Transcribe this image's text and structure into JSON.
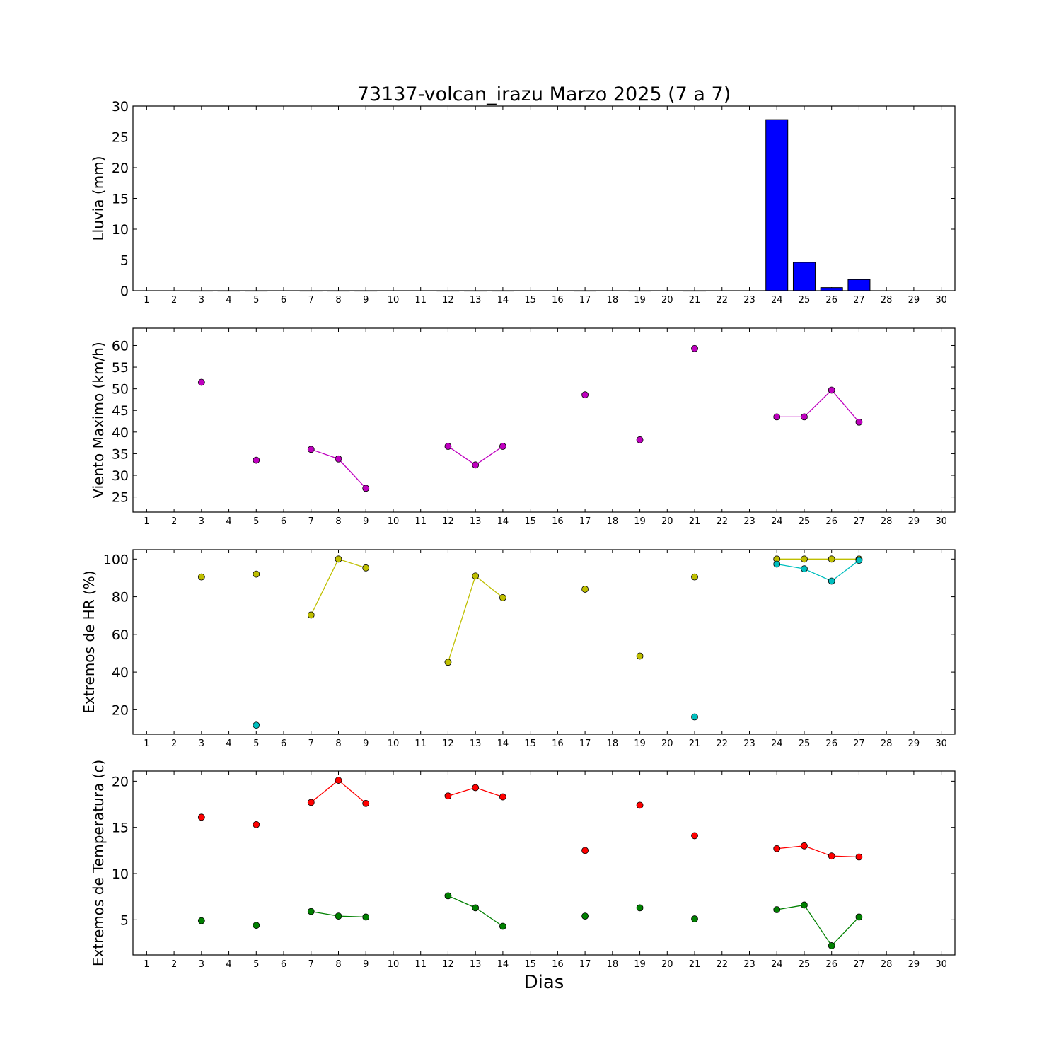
{
  "figure": {
    "title": "73137-volcan_irazu Marzo 2025  (7 a 7)",
    "xlabel": "Dias"
  },
  "chart_data": [
    {
      "type": "bar",
      "ylabel": "Lluvia (mm)",
      "xlim": [
        0.5,
        30.5
      ],
      "ylim": [
        0,
        30
      ],
      "yticks": [
        0,
        5,
        10,
        15,
        20,
        25,
        30
      ],
      "categories": [
        1,
        2,
        3,
        4,
        5,
        6,
        7,
        8,
        9,
        10,
        11,
        12,
        13,
        14,
        15,
        16,
        17,
        18,
        19,
        20,
        21,
        22,
        23,
        24,
        25,
        26,
        27,
        28,
        29,
        30
      ],
      "values": [
        null,
        null,
        0,
        0,
        0,
        null,
        0,
        0,
        0,
        null,
        null,
        0,
        0,
        0,
        null,
        null,
        0,
        null,
        0,
        null,
        0,
        null,
        null,
        27.8,
        4.6,
        0.5,
        1.8,
        null,
        null,
        null
      ],
      "color": "#0000ff",
      "grid": false
    },
    {
      "type": "line",
      "ylabel": "Viento Maximo (km/h)",
      "xlim": [
        0.5,
        30.5
      ],
      "ylim": [
        21.5,
        64
      ],
      "yticks": [
        25,
        30,
        35,
        40,
        45,
        50,
        55,
        60
      ],
      "series": [
        {
          "color": "#bf00bf",
          "x": [
            1,
            2,
            3,
            4,
            5,
            6,
            7,
            8,
            9,
            10,
            11,
            12,
            13,
            14,
            15,
            16,
            17,
            18,
            19,
            20,
            21,
            22,
            23,
            24,
            25,
            26,
            27,
            28,
            29,
            30
          ],
          "y": [
            null,
            null,
            51.5,
            null,
            33.5,
            null,
            36.0,
            33.8,
            27.0,
            null,
            null,
            36.7,
            32.4,
            36.7,
            null,
            null,
            48.6,
            null,
            38.2,
            null,
            59.3,
            null,
            null,
            43.5,
            43.5,
            49.7,
            42.3,
            null,
            null,
            null
          ]
        }
      ],
      "grid": false
    },
    {
      "type": "line",
      "ylabel": "Extremos de HR (%)",
      "xlim": [
        0.5,
        30.5
      ],
      "ylim": [
        7,
        105
      ],
      "yticks": [
        20,
        40,
        60,
        80,
        100
      ],
      "series": [
        {
          "color": "#bfbf00",
          "x": [
            1,
            2,
            3,
            4,
            5,
            6,
            7,
            8,
            9,
            10,
            11,
            12,
            13,
            14,
            15,
            16,
            17,
            18,
            19,
            20,
            21,
            22,
            23,
            24,
            25,
            26,
            27,
            28,
            29,
            30
          ],
          "y": [
            null,
            null,
            90.5,
            null,
            92.0,
            null,
            70.3,
            100,
            95.3,
            null,
            null,
            45.2,
            91.0,
            79.5,
            null,
            null,
            84.0,
            null,
            48.5,
            null,
            90.5,
            null,
            null,
            100,
            100,
            100,
            100,
            null,
            null,
            null
          ]
        },
        {
          "color": "#00bfbf",
          "x": [
            1,
            2,
            3,
            4,
            5,
            6,
            7,
            8,
            9,
            10,
            11,
            12,
            13,
            14,
            15,
            16,
            17,
            18,
            19,
            20,
            21,
            22,
            23,
            24,
            25,
            26,
            27,
            28,
            29,
            30
          ],
          "y": [
            null,
            null,
            null,
            null,
            11.8,
            null,
            null,
            null,
            null,
            null,
            null,
            null,
            null,
            null,
            null,
            null,
            null,
            null,
            null,
            null,
            16.2,
            null,
            null,
            97.3,
            94.8,
            88.3,
            99.3,
            null,
            null,
            null
          ]
        }
      ],
      "grid": false
    },
    {
      "type": "line",
      "ylabel": "Extremos de Temperatura (c)",
      "xlim": [
        0.5,
        30.5
      ],
      "ylim": [
        1.2,
        21.1
      ],
      "yticks": [
        5,
        10,
        15,
        20
      ],
      "series": [
        {
          "color": "#ff0000",
          "x": [
            1,
            2,
            3,
            4,
            5,
            6,
            7,
            8,
            9,
            10,
            11,
            12,
            13,
            14,
            15,
            16,
            17,
            18,
            19,
            20,
            21,
            22,
            23,
            24,
            25,
            26,
            27,
            28,
            29,
            30
          ],
          "y": [
            null,
            null,
            16.1,
            null,
            15.3,
            null,
            17.7,
            20.1,
            17.6,
            null,
            null,
            18.4,
            19.3,
            18.3,
            null,
            null,
            12.5,
            null,
            17.4,
            null,
            14.1,
            null,
            null,
            12.7,
            13.0,
            11.9,
            11.8,
            null,
            null,
            null
          ]
        },
        {
          "color": "#008000",
          "x": [
            1,
            2,
            3,
            4,
            5,
            6,
            7,
            8,
            9,
            10,
            11,
            12,
            13,
            14,
            15,
            16,
            17,
            18,
            19,
            20,
            21,
            22,
            23,
            24,
            25,
            26,
            27,
            28,
            29,
            30
          ],
          "y": [
            null,
            null,
            4.9,
            null,
            4.4,
            null,
            5.9,
            5.4,
            5.3,
            null,
            null,
            7.6,
            6.3,
            4.3,
            null,
            null,
            5.4,
            null,
            6.3,
            null,
            5.1,
            null,
            null,
            6.1,
            6.6,
            2.2,
            5.3,
            null,
            null,
            null
          ]
        }
      ],
      "grid": false
    }
  ]
}
